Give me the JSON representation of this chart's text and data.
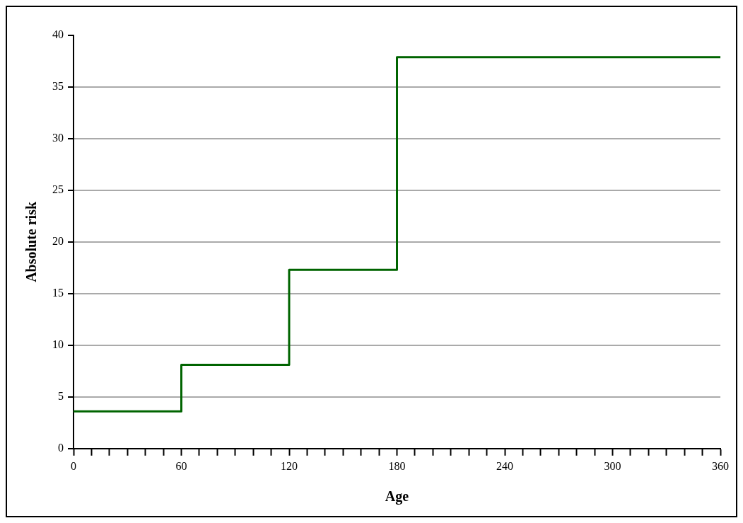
{
  "chart_data": {
    "type": "step",
    "xlabel": "Age",
    "ylabel": "Absolute risk",
    "x": [
      0,
      60,
      120,
      180,
      360
    ],
    "series": [
      {
        "color": "#006400",
        "values": [
          3.6,
          8.1,
          17.3,
          37.9,
          37.9
        ]
      }
    ],
    "xlim": [
      0,
      360
    ],
    "xticks": [
      0,
      {
        "value": 10,
        "label": null
      },
      {
        "value": 20,
        "label": null
      },
      {
        "value": 30,
        "label": null
      },
      {
        "value": 40,
        "label": null
      },
      {
        "value": 50,
        "label": null
      },
      60,
      {
        "value": 70,
        "label": null
      },
      {
        "value": 80,
        "label": null
      },
      {
        "value": 90,
        "label": null
      },
      {
        "value": 100,
        "label": null
      },
      {
        "value": 110,
        "label": null
      },
      120,
      {
        "value": 130,
        "label": null
      },
      {
        "value": 140,
        "label": null
      },
      {
        "value": 150,
        "label": null
      },
      {
        "value": 160,
        "label": null
      },
      {
        "value": 170,
        "label": null
      },
      180,
      {
        "value": 190,
        "label": null
      },
      {
        "value": 200,
        "label": null
      },
      {
        "value": 210,
        "label": null
      },
      {
        "value": 220,
        "label": null
      },
      {
        "value": 230,
        "label": null
      },
      240,
      {
        "value": 250,
        "label": null
      },
      {
        "value": 260,
        "label": null
      },
      {
        "value": 270,
        "label": null
      },
      {
        "value": 280,
        "label": null
      },
      {
        "value": 290,
        "label": null
      },
      300,
      {
        "value": 310,
        "label": null
      },
      {
        "value": 320,
        "label": null
      },
      {
        "value": 330,
        "label": null
      },
      {
        "value": 340,
        "label": null
      },
      {
        "value": 350,
        "label": null
      },
      360
    ],
    "ylim": [
      0,
      40
    ],
    "yticks": [
      0,
      5,
      10,
      15,
      20,
      25,
      30,
      35,
      40
    ],
    "grid": "y",
    "legend": false,
    "marker": "none",
    "line_style": "solid"
  }
}
